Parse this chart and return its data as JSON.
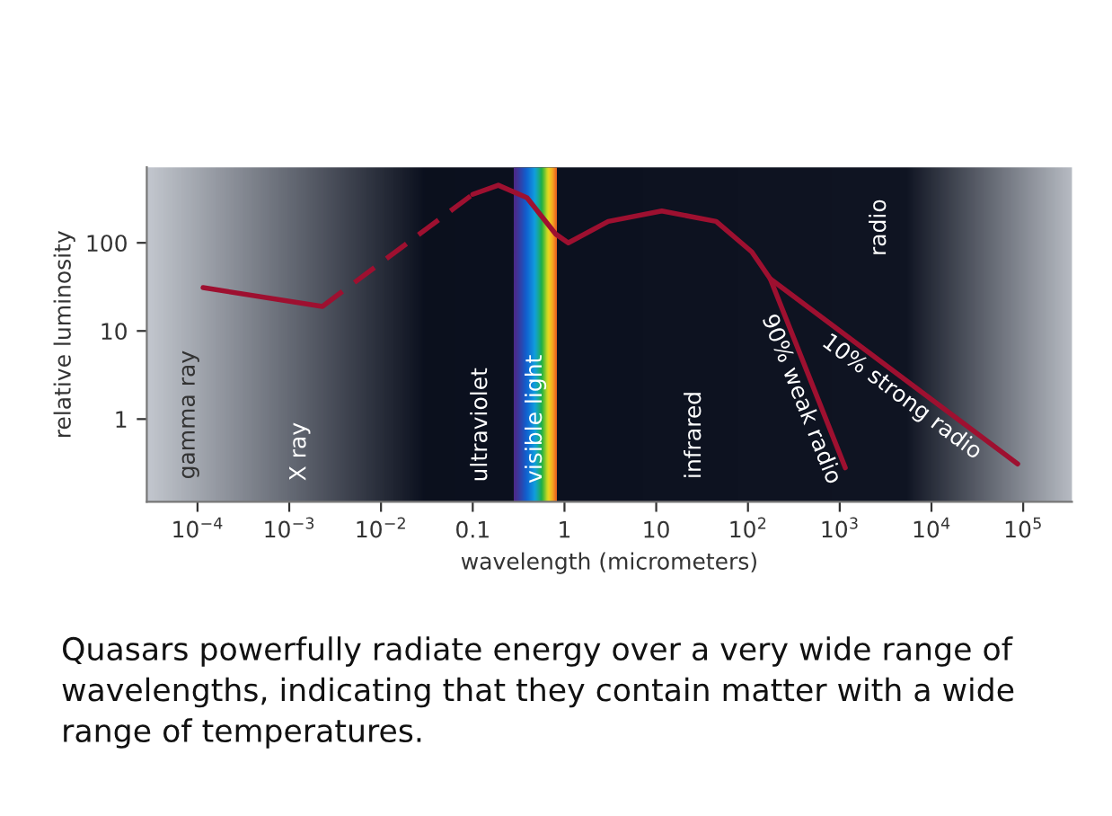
{
  "chart_data": {
    "type": "line",
    "xlabel": "wavelength (micrometers)",
    "ylabel": "relative luminosity",
    "log": "xy",
    "xlim": [
      2.8e-05,
      340000
    ],
    "ylim": [
      0.115,
      720
    ],
    "xticks": [
      {
        "value": 0.0001,
        "label": "10$^{−4}$"
      },
      {
        "value": 0.001,
        "label": "10$^{−3}$"
      },
      {
        "value": 0.01,
        "label": "10$^{−2}$"
      },
      {
        "value": 0.1,
        "label": "0.1"
      },
      1,
      10,
      {
        "value": 100,
        "label": "10$^{2}$"
      },
      {
        "value": 1000,
        "label": "10$^{3}$"
      },
      {
        "value": 10000,
        "label": "10$^{4}$"
      },
      {
        "value": 100000,
        "label": "10$^{5}$"
      }
    ],
    "yticks": [
      1,
      10,
      100
    ],
    "series": [
      {
        "color": "#9e1030",
        "line_style": "solid",
        "x": [
          0.000115,
          0.0023
        ],
        "values": [
          31,
          19
        ]
      },
      {
        "color": "#9e1030",
        "line_style": "dashed",
        "x": [
          0.0023,
          0.1
        ],
        "values": [
          19,
          355
        ]
      },
      {
        "color": "#9e1030",
        "line_style": "solid",
        "x": [
          0.1,
          0.19,
          0.39,
          0.8,
          1.1,
          3,
          11.5,
          45,
          110,
          175,
          1150
        ],
        "values": [
          355,
          450,
          325,
          126,
          100,
          175,
          230,
          175,
          79,
          39,
          0.28
        ]
      },
      {
        "name": "10% strong radio",
        "color": "#9e1030",
        "line_style": "solid",
        "x": [
          175,
          87000
        ],
        "values": [
          39,
          0.31
        ]
      }
    ],
    "bands": [
      {
        "axis": "x",
        "from": 0.28,
        "to": 0.83,
        "label": "visible light"
      }
    ],
    "annotations": [
      "gamma ray",
      "X ray",
      "ultraviolet",
      "infrared",
      "radio",
      "90% weak radio",
      "Quasars powerfully radiate energy over a very wide range of wavelengths, indicating that they contain matter with a wide range of temperatures."
    ],
    "legend": false
  }
}
